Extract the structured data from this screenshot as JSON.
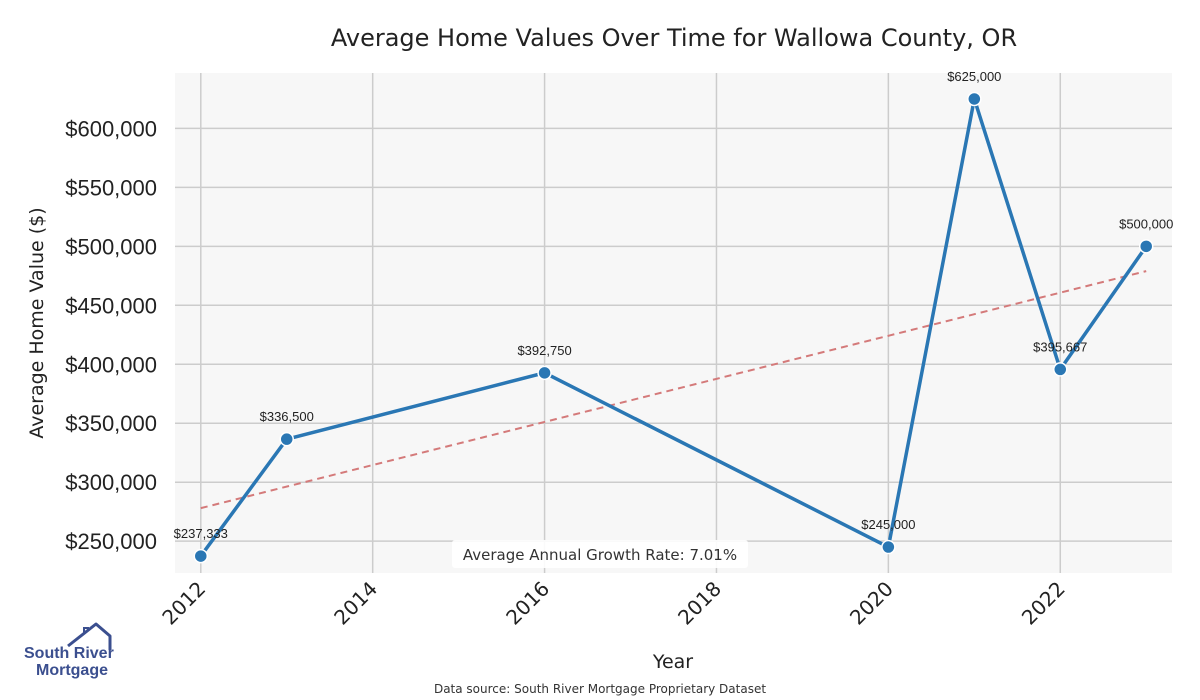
{
  "chart_data": {
    "type": "line",
    "title": "Average Home Values Over Time for Wallowa County, OR",
    "xlabel": "Year",
    "ylabel": "Average Home Value ($)",
    "xlim": [
      2011.7,
      2023.3
    ],
    "ylim": [
      223000,
      647000
    ],
    "x_ticks": [
      2012,
      2014,
      2016,
      2018,
      2020,
      2022
    ],
    "y_ticks": [
      250000,
      300000,
      350000,
      400000,
      450000,
      500000,
      550000,
      600000
    ],
    "y_tick_labels": [
      "$250,000",
      "$300,000",
      "$350,000",
      "$400,000",
      "$450,000",
      "$500,000",
      "$550,000",
      "$600,000"
    ],
    "grid": true,
    "series": [
      {
        "name": "Average Home Value",
        "color": "#2a77b4",
        "x": [
          2012,
          2013,
          2016,
          2020,
          2021,
          2022,
          2023
        ],
        "values": [
          237333,
          336500,
          392750,
          245000,
          625000,
          395667,
          500000
        ],
        "labels": [
          "$237,333",
          "$336,500",
          "$392,750",
          "$245,000",
          "$625,000",
          "$395,667",
          "$500,000"
        ]
      },
      {
        "name": "Trend",
        "color": "#d47a7a",
        "style": "dashed",
        "x": [
          2012,
          2023
        ],
        "values": [
          278000,
          479000
        ]
      }
    ],
    "annotation": "Average Annual Growth Rate: 7.01%"
  },
  "footer": {
    "source": "Data source: South River Mortgage Proprietary Dataset"
  },
  "logo": {
    "line1": "South River",
    "line2": "Mortgage",
    "color": "#3b4f8f"
  }
}
